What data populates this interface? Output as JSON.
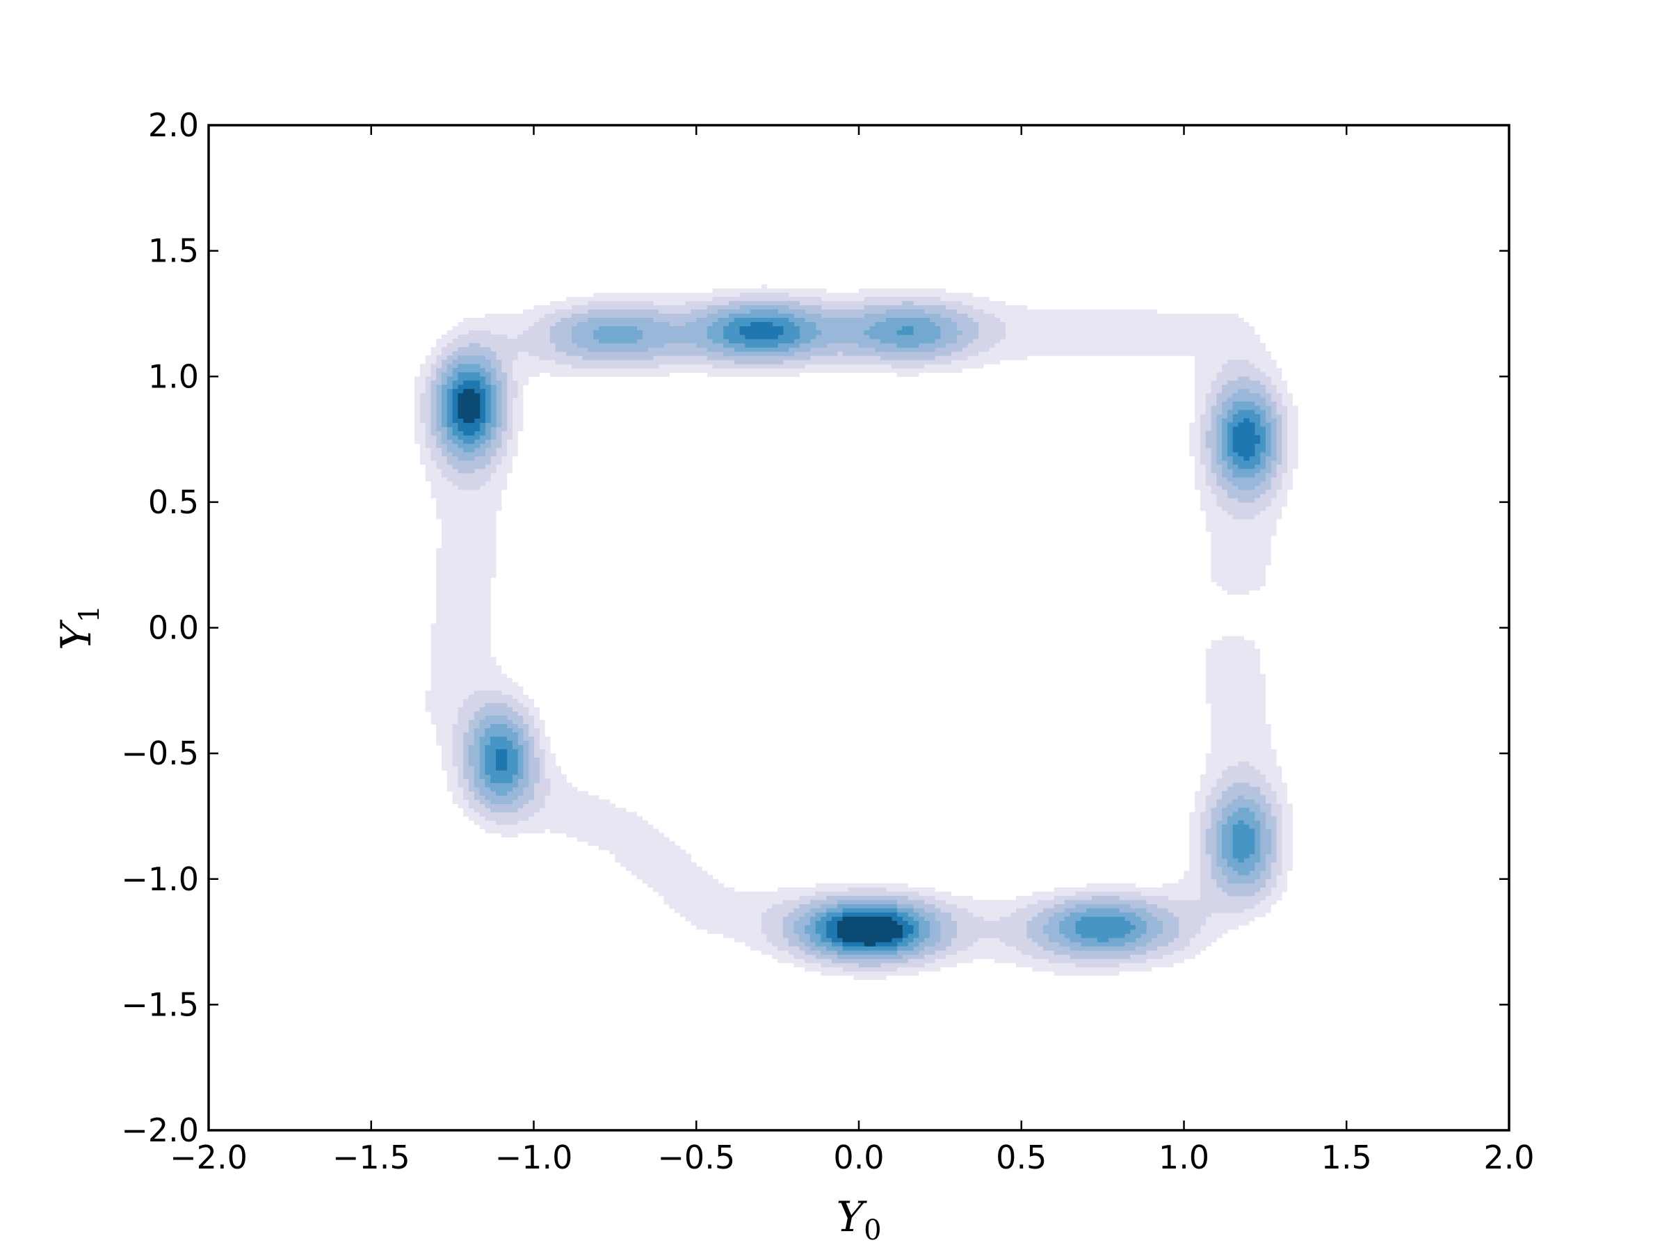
{
  "chart_data": {
    "type": "contour",
    "title": "",
    "xlabel": "Y",
    "xlabel_subscript": "0",
    "ylabel": "Y",
    "ylabel_subscript": "1",
    "xlim": [
      -2.0,
      2.0
    ],
    "ylim": [
      -2.0,
      2.0
    ],
    "xticks": [
      -2.0,
      -1.5,
      -1.0,
      -0.5,
      0.0,
      0.5,
      1.0,
      1.5,
      2.0
    ],
    "yticks": [
      -2.0,
      -1.5,
      -1.0,
      -0.5,
      0.0,
      0.5,
      1.0,
      1.5,
      2.0
    ],
    "xtick_labels": [
      "−2.0",
      "−1.5",
      "−1.0",
      "−0.5",
      "0.0",
      "0.5",
      "1.0",
      "1.5",
      "2.0"
    ],
    "ytick_labels": [
      "−2.0",
      "−1.5",
      "−1.0",
      "−0.5",
      "0.0",
      "0.5",
      "1.0",
      "1.5",
      "2.0"
    ],
    "grid": false,
    "legend": "none",
    "colormap": "PuBu",
    "levels": [
      0.1,
      0.18,
      0.28,
      0.4,
      0.52,
      0.64,
      0.76,
      0.88
    ],
    "level_colors": [
      "#e8e6f2",
      "#d4d5e8",
      "#b6c3df",
      "#98b7d9",
      "#73a8d0",
      "#4795c4",
      "#1f77b0",
      "#0b4a73"
    ],
    "density_peaks": [
      {
        "x": 0.03,
        "y": -1.2,
        "weight": 1.0
      },
      {
        "x": -1.2,
        "y": 0.88,
        "weight": 0.86
      },
      {
        "x": -0.3,
        "y": 1.18,
        "weight": 0.7
      },
      {
        "x": 1.19,
        "y": 0.75,
        "weight": 0.74
      },
      {
        "x": -1.1,
        "y": -0.52,
        "weight": 0.68
      },
      {
        "x": 0.75,
        "y": -1.19,
        "weight": 0.64
      },
      {
        "x": 1.18,
        "y": -0.85,
        "weight": 0.6
      },
      {
        "x": 0.15,
        "y": 1.18,
        "weight": 0.52
      },
      {
        "x": -0.75,
        "y": 1.17,
        "weight": 0.45
      }
    ]
  }
}
